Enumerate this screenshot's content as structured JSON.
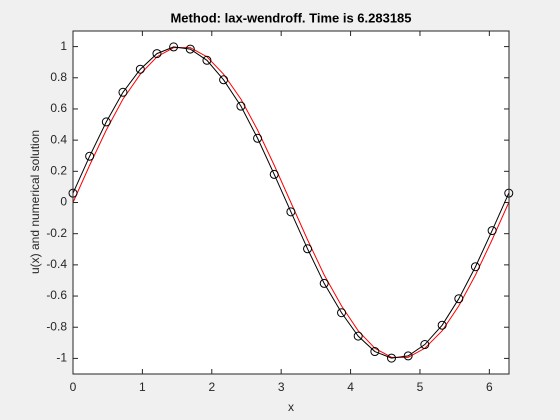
{
  "chart_data": {
    "type": "line",
    "title": "Method: lax-wendroff. Time is 6.283185",
    "xlabel": "x",
    "ylabel": "u(x) and numerical solution",
    "x": [
      0,
      0.24,
      0.48,
      0.72,
      0.97,
      1.21,
      1.45,
      1.69,
      1.93,
      2.17,
      2.42,
      2.66,
      2.9,
      3.14,
      3.38,
      3.62,
      3.87,
      4.11,
      4.35,
      4.59,
      4.83,
      5.07,
      5.32,
      5.56,
      5.8,
      6.04,
      6.28
    ],
    "series": [
      {
        "color": "#000000",
        "marker": "circle",
        "values": [
          0.06,
          0.297,
          0.517,
          0.707,
          0.855,
          0.955,
          0.998,
          0.984,
          0.912,
          0.787,
          0.618,
          0.412,
          0.18,
          -0.06,
          -0.297,
          -0.519,
          -0.707,
          -0.857,
          -0.956,
          -0.998,
          -0.984,
          -0.911,
          -0.787,
          -0.617,
          -0.412,
          -0.18,
          0.06
        ]
      },
      {
        "color": "#ff0000",
        "values": [
          0,
          0.239,
          0.465,
          0.663,
          0.823,
          0.935,
          0.993,
          0.993,
          0.935,
          0.823,
          0.663,
          0.465,
          0.239,
          0,
          -0.239,
          -0.465,
          -0.663,
          -0.823,
          -0.935,
          -0.993,
          -0.993,
          -0.935,
          -0.823,
          -0.663,
          -0.465,
          -0.239,
          0
        ]
      }
    ],
    "xlim": [
      0,
      6.2832
    ],
    "ylim": [
      -1.1,
      1.1
    ],
    "xticks": [
      0,
      1,
      2,
      3,
      4,
      5,
      6
    ],
    "yticks": [
      -1,
      -0.8,
      -0.6,
      -0.4,
      -0.2,
      0,
      0.2,
      0.4,
      0.6,
      0.8,
      1
    ],
    "grid": false
  }
}
